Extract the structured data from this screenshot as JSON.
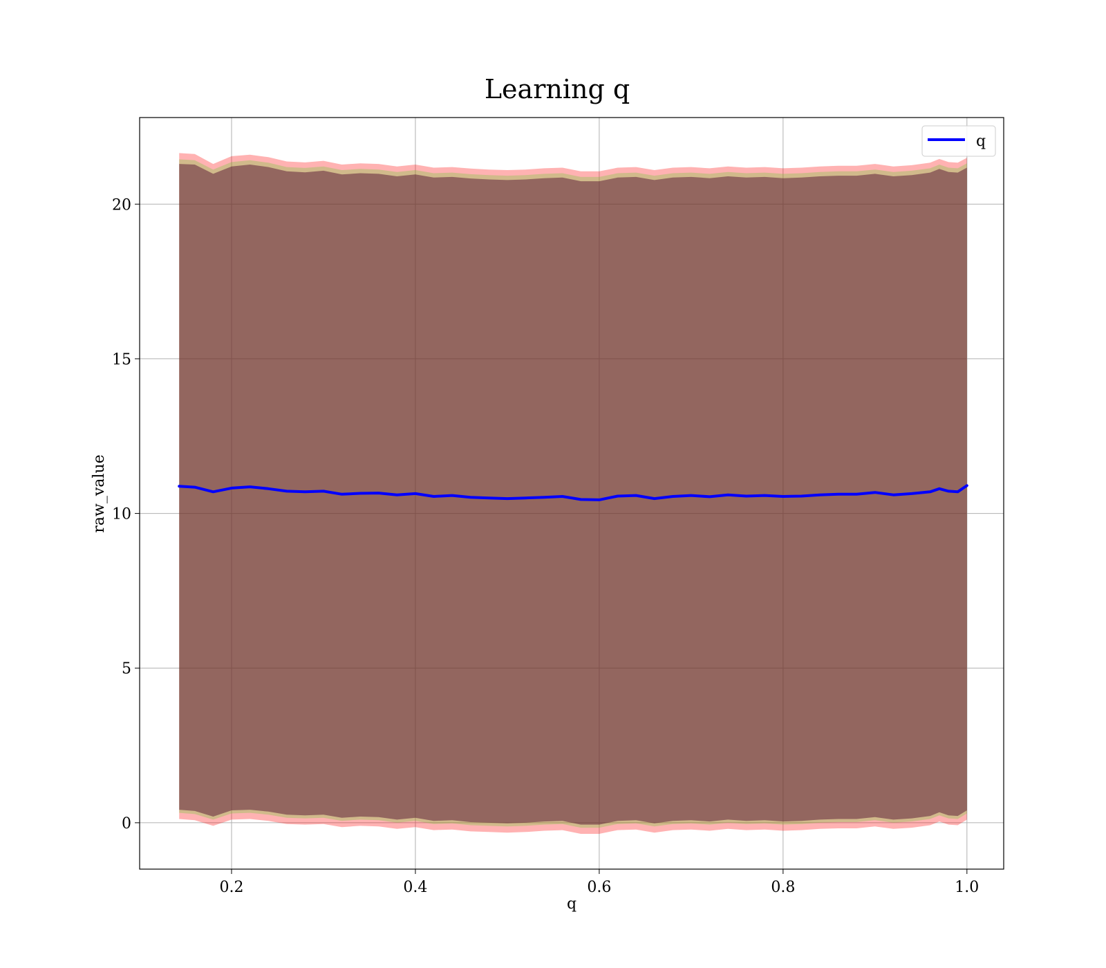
{
  "chart_data": {
    "type": "line",
    "title": "Learning q",
    "xlabel": "q",
    "ylabel": "raw_value",
    "xlim": [
      0.1,
      1.04
    ],
    "ylim": [
      -1.5,
      22.8
    ],
    "xticks": [
      0.2,
      0.4,
      0.6,
      0.8,
      1.0
    ],
    "xtick_labels": [
      "0.2",
      "0.4",
      "0.6",
      "0.8",
      "1.0"
    ],
    "yticks": [
      0,
      5,
      10,
      15,
      20
    ],
    "ytick_labels": [
      "0",
      "5",
      "10",
      "15",
      "20"
    ],
    "grid": true,
    "legend": {
      "placement": "top-right",
      "entries": [
        "q"
      ]
    },
    "x": [
      0.143,
      0.16,
      0.18,
      0.2,
      0.22,
      0.24,
      0.26,
      0.28,
      0.3,
      0.32,
      0.34,
      0.36,
      0.38,
      0.4,
      0.42,
      0.44,
      0.46,
      0.48,
      0.5,
      0.52,
      0.54,
      0.56,
      0.58,
      0.6,
      0.62,
      0.64,
      0.66,
      0.68,
      0.7,
      0.72,
      0.74,
      0.76,
      0.78,
      0.8,
      0.82,
      0.84,
      0.86,
      0.88,
      0.9,
      0.92,
      0.94,
      0.96,
      0.97,
      0.98,
      0.99,
      1.0
    ],
    "series": [
      {
        "name": "q",
        "color": "#0000ff",
        "values": [
          10.88,
          10.85,
          10.7,
          10.82,
          10.86,
          10.8,
          10.72,
          10.7,
          10.72,
          10.62,
          10.65,
          10.66,
          10.6,
          10.64,
          10.55,
          10.58,
          10.52,
          10.5,
          10.48,
          10.5,
          10.52,
          10.55,
          10.45,
          10.44,
          10.56,
          10.58,
          10.48,
          10.55,
          10.58,
          10.54,
          10.6,
          10.56,
          10.58,
          10.55,
          10.56,
          10.6,
          10.62,
          10.62,
          10.68,
          10.6,
          10.64,
          10.7,
          10.8,
          10.72,
          10.7,
          10.9
        ]
      }
    ],
    "bands": [
      {
        "color": "#ff0000",
        "opacity": 0.3,
        "upper": [
          21.65,
          21.62,
          21.3,
          21.55,
          21.6,
          21.52,
          21.38,
          21.35,
          21.4,
          21.28,
          21.32,
          21.3,
          21.22,
          21.28,
          21.18,
          21.2,
          21.15,
          21.12,
          21.1,
          21.12,
          21.16,
          21.18,
          21.06,
          21.06,
          21.18,
          21.2,
          21.1,
          21.18,
          21.2,
          21.16,
          21.22,
          21.18,
          21.2,
          21.16,
          21.18,
          21.22,
          21.24,
          21.24,
          21.3,
          21.22,
          21.26,
          21.34,
          21.46,
          21.36,
          21.34,
          21.5
        ],
        "lower": [
          0.12,
          0.08,
          -0.1,
          0.1,
          0.12,
          0.06,
          -0.04,
          -0.06,
          -0.04,
          -0.14,
          -0.1,
          -0.12,
          -0.2,
          -0.14,
          -0.24,
          -0.22,
          -0.28,
          -0.3,
          -0.32,
          -0.3,
          -0.26,
          -0.24,
          -0.36,
          -0.36,
          -0.24,
          -0.22,
          -0.32,
          -0.24,
          -0.22,
          -0.26,
          -0.2,
          -0.24,
          -0.22,
          -0.26,
          -0.24,
          -0.2,
          -0.18,
          -0.18,
          -0.12,
          -0.2,
          -0.16,
          -0.08,
          0.04,
          -0.06,
          -0.08,
          0.1
        ]
      },
      {
        "color": "#66cc33",
        "opacity": 0.3,
        "upper": [
          21.45,
          21.42,
          21.12,
          21.36,
          21.42,
          21.34,
          21.2,
          21.17,
          21.22,
          21.1,
          21.14,
          21.12,
          21.04,
          21.1,
          21.0,
          21.02,
          20.97,
          20.94,
          20.92,
          20.94,
          20.98,
          21.0,
          20.88,
          20.88,
          21.0,
          21.02,
          20.92,
          21.0,
          21.02,
          20.98,
          21.04,
          21.0,
          21.02,
          20.98,
          21.0,
          21.04,
          21.06,
          21.06,
          21.12,
          21.04,
          21.08,
          21.16,
          21.28,
          21.18,
          21.16,
          21.32
        ],
        "lower": [
          0.32,
          0.28,
          0.1,
          0.3,
          0.32,
          0.26,
          0.16,
          0.14,
          0.16,
          0.06,
          0.1,
          0.08,
          0.0,
          0.06,
          -0.04,
          -0.02,
          -0.08,
          -0.1,
          -0.12,
          -0.1,
          -0.06,
          -0.04,
          -0.16,
          -0.16,
          -0.04,
          -0.02,
          -0.12,
          -0.04,
          -0.02,
          -0.06,
          0.0,
          -0.04,
          -0.02,
          -0.06,
          -0.04,
          0.0,
          0.02,
          0.02,
          0.08,
          0.0,
          0.04,
          0.12,
          0.24,
          0.14,
          0.12,
          0.3
        ]
      },
      {
        "color": "#551133",
        "opacity": 0.5,
        "upper": [
          21.3,
          21.28,
          20.98,
          21.22,
          21.28,
          21.2,
          21.06,
          21.03,
          21.08,
          20.96,
          21.0,
          20.98,
          20.9,
          20.96,
          20.86,
          20.88,
          20.83,
          20.8,
          20.78,
          20.8,
          20.84,
          20.86,
          20.74,
          20.74,
          20.86,
          20.88,
          20.78,
          20.86,
          20.88,
          20.84,
          20.9,
          20.86,
          20.88,
          20.84,
          20.86,
          20.9,
          20.92,
          20.92,
          20.98,
          20.9,
          20.94,
          21.02,
          21.14,
          21.04,
          21.02,
          21.18
        ],
        "lower": [
          0.42,
          0.38,
          0.2,
          0.4,
          0.42,
          0.36,
          0.26,
          0.24,
          0.26,
          0.16,
          0.2,
          0.18,
          0.1,
          0.16,
          0.06,
          0.08,
          0.02,
          0.0,
          -0.02,
          0.0,
          0.04,
          0.06,
          -0.06,
          -0.06,
          0.06,
          0.08,
          -0.02,
          0.06,
          0.08,
          0.04,
          0.1,
          0.06,
          0.08,
          0.04,
          0.06,
          0.1,
          0.12,
          0.12,
          0.18,
          0.1,
          0.14,
          0.22,
          0.34,
          0.24,
          0.22,
          0.4
        ]
      }
    ]
  }
}
